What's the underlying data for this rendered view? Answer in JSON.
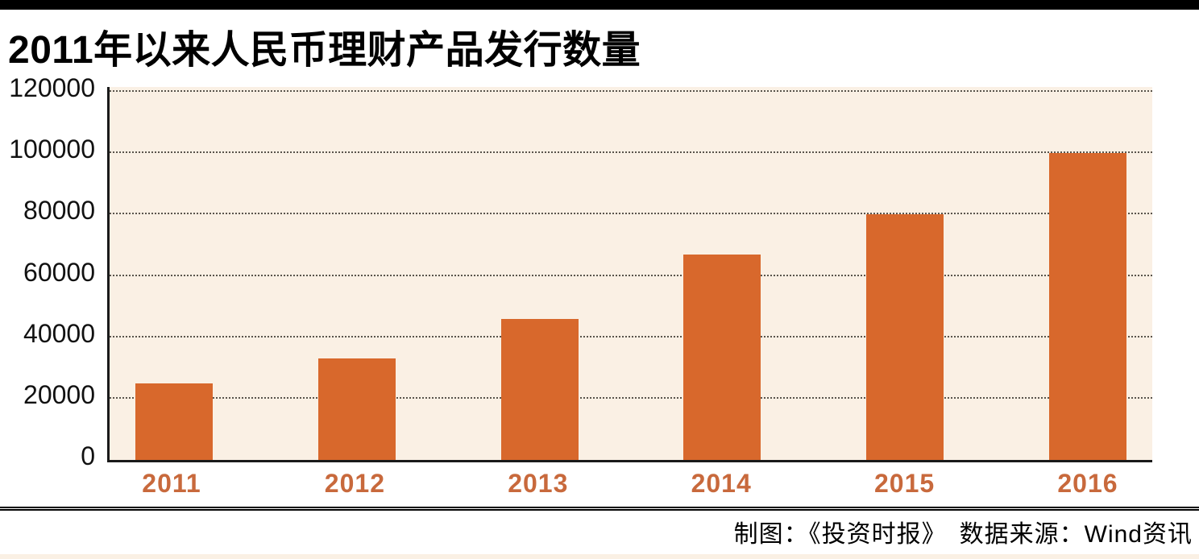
{
  "page": {
    "title": "2011年以来人民币理财产品发行数量",
    "caption": "制图：《投资时报》　数据来源：Wind资讯"
  },
  "colors": {
    "top_bar": "#000000",
    "plot_background": "#faf0e4",
    "bar_fill": "#d8682c",
    "gridline": "#59544c",
    "year_label": "#c8693c",
    "axis_text": "#111111"
  },
  "chart_data": {
    "type": "bar",
    "title": "2011年以来人民币理财产品发行数量",
    "categories": [
      "2011",
      "2012",
      "2013",
      "2014",
      "2015",
      "2016"
    ],
    "values": [
      25000,
      33000,
      46000,
      67000,
      80000,
      100000
    ],
    "xlabel": "",
    "ylabel": "",
    "ylim": [
      0,
      120000
    ],
    "yticks": [
      0,
      20000,
      40000,
      60000,
      80000,
      100000,
      120000
    ],
    "ytick_labels": [
      "0",
      "20000",
      "40000",
      "60000",
      "80000",
      "100000",
      "120000"
    ],
    "grid": "horizontal-dotted",
    "legend": "none",
    "bar_color": "#d8682c",
    "source_note": "制图：《投资时报》　数据来源：Wind资讯"
  }
}
